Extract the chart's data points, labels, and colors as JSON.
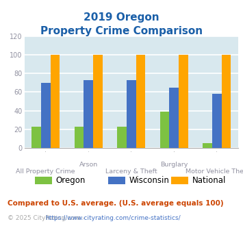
{
  "title_line1": "2019 Oregon",
  "title_line2": "Property Crime Comparison",
  "oregon_values": [
    23,
    23,
    23,
    39,
    5
  ],
  "wisconsin_values": [
    70,
    73,
    73,
    65,
    58
  ],
  "national_values": [
    100,
    100,
    100,
    100,
    100
  ],
  "oregon_color": "#7dc242",
  "wisconsin_color": "#4472c4",
  "national_color": "#ffa500",
  "ylim": [
    0,
    120
  ],
  "yticks": [
    0,
    20,
    40,
    60,
    80,
    100,
    120
  ],
  "plot_bg_color": "#d8e8ee",
  "grid_color": "#ffffff",
  "title_color": "#1a5fa8",
  "label_color": "#9090a0",
  "legend_labels": [
    "Oregon",
    "Wisconsin",
    "National"
  ],
  "footnote1": "Compared to U.S. average. (U.S. average equals 100)",
  "footnote2_pre": "© 2025 CityRating.com - ",
  "footnote2_url": "https://www.cityrating.com/crime-statistics/",
  "footnote1_color": "#cc4400",
  "footnote2_color": "#aaaaaa",
  "footnote2_url_color": "#4472c4"
}
